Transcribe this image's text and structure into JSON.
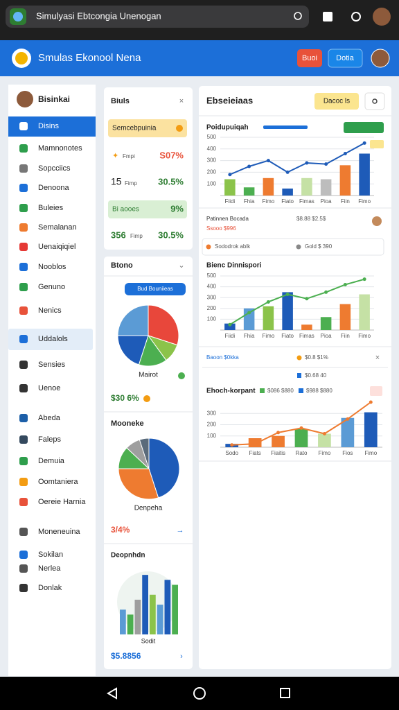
{
  "browser": {
    "url": "Simulyasi Ebtcongia Unenogan"
  },
  "header": {
    "title": "Smulas Ekonool Nena",
    "buttons": [
      "Buoi",
      "Dotia"
    ]
  },
  "sidebar": {
    "user": "Bisinkai",
    "items": [
      "Disins",
      "Mamnonotes",
      "Sopcciics",
      "Denoona",
      "Buleies",
      "Semalanan",
      "Uenaiqiqiel",
      "Nooblos",
      "Genuno",
      "Nenics",
      "Uddalols",
      "Sensies",
      "Uenoe",
      "Abeda",
      "Faleps",
      "Demuia",
      "Oomtaniera",
      "Oereie Harnia",
      "Moneneuina",
      "Sokilan",
      "Nerlea",
      "Donlak"
    ]
  },
  "summary": {
    "title": "Biuls",
    "banner": "Semcebpuinia",
    "rows": [
      [
        "Fmpi",
        "S07%"
      ],
      [
        "15",
        "Fimp",
        "30.5%"
      ],
      [
        "Bi aooes",
        "9%"
      ],
      [
        "356",
        "Fimp",
        "30.5%"
      ]
    ]
  },
  "breakdown": {
    "title": "Btono",
    "button": "Bud Bouniieas",
    "charts": [
      {
        "type": "pie",
        "label": "Mairot",
        "footer": "$30 6%",
        "values": [
          30,
          10,
          15,
          20,
          25
        ],
        "colors": [
          "#e8473b",
          "#8bc34a",
          "#4caf50",
          "#1e5bb8",
          "#5b9bd5"
        ]
      },
      {
        "type": "pie",
        "title": "Mooneke",
        "label": "Denpeha",
        "footer": "3/4%",
        "values": [
          45,
          30,
          12,
          8,
          5
        ],
        "colors": [
          "#1e5bb8",
          "#ee7b30",
          "#4caf50",
          "#9e9e9e",
          "#5a6b7b"
        ]
      },
      {
        "type": "bar",
        "title": "Deopnhdn",
        "label": "Sodit",
        "footer": "$5.8856",
        "ylim": [
          0,
          130
        ],
        "values": [
          50,
          40,
          70,
          120,
          80,
          60,
          110,
          100
        ],
        "colors": [
          "#5b9bd5",
          "#4caf50",
          "#9e9e9e",
          "#1e5bb8",
          "#8bc34a",
          "#5b9bd5",
          "#1e5bb8",
          "#4caf50"
        ]
      }
    ]
  },
  "panel": {
    "title": "Ebseieiaas",
    "button": "Dacoc ls",
    "charts": [
      {
        "type": "combo",
        "title": "Poidupuiqah",
        "ylim": [
          0,
          500
        ],
        "yticks": [
          100,
          200,
          300,
          400,
          500
        ],
        "categories": [
          "Fiidi",
          "Fhia",
          "Fimo",
          "Fiato",
          "Fimas",
          "Pioa",
          "Fiin",
          "Fimo"
        ],
        "bars": {
          "values": [
            140,
            70,
            150,
            60,
            150,
            140,
            260,
            360
          ],
          "colors": [
            "#8bc34a",
            "#4caf50",
            "#ee7b30",
            "#1e5bb8",
            "#c5e1a5",
            "#bdbdbd",
            "#ee7b30",
            "#1e5bb8"
          ]
        },
        "line": {
          "color": "#1e5bb8",
          "values": [
            180,
            250,
            300,
            200,
            280,
            270,
            360,
            450
          ]
        },
        "notes": [
          "Patinnen Bocada",
          "$8.88 $2.5$",
          "Ssooo $996",
          "Sododrok ablk",
          "Gold $ 390"
        ]
      },
      {
        "type": "combo",
        "title": "Bienc Dinnispori",
        "ylim": [
          0,
          500
        ],
        "yticks": [
          100,
          200,
          300,
          400,
          500
        ],
        "categories": [
          "Fiidi",
          "Fhia",
          "Fimo",
          "Fiato",
          "Fimas",
          "Pioa",
          "Fiin",
          "Fimo"
        ],
        "bars": {
          "values": [
            60,
            200,
            220,
            350,
            50,
            120,
            240,
            330
          ],
          "colors": [
            "#1e5bb8",
            "#5b9bd5",
            "#8bc34a",
            "#1e5bb8",
            "#ee7b30",
            "#4caf50",
            "#ee7b30",
            "#c5e1a5"
          ]
        },
        "line": {
          "color": "#4caf50",
          "values": [
            50,
            160,
            260,
            330,
            290,
            350,
            420,
            470
          ]
        },
        "notes": [
          "Baoon $0kka",
          "$0.8 $1%",
          "$0.68 40"
        ]
      },
      {
        "type": "combo",
        "title": "Ehoch-korpant",
        "ylim": [
          0,
          400
        ],
        "yticks": [
          100,
          200,
          300
        ],
        "categories": [
          "Sodo",
          "Fiats",
          "Fiaitis",
          "Rato",
          "Fimo",
          "Fios",
          "Fimo"
        ],
        "bars": {
          "values": [
            30,
            80,
            100,
            160,
            120,
            260,
            310
          ],
          "colors": [
            "#1e5bb8",
            "#ee7b30",
            "#ee7b30",
            "#4caf50",
            "#c5e1a5",
            "#5b9bd5",
            "#1e5bb8"
          ]
        },
        "line": {
          "color": "#ee7b30",
          "values": [
            20,
            30,
            130,
            170,
            120,
            250,
            400
          ]
        },
        "notes": [
          "$086 $880",
          "$988 $880"
        ]
      }
    ]
  }
}
